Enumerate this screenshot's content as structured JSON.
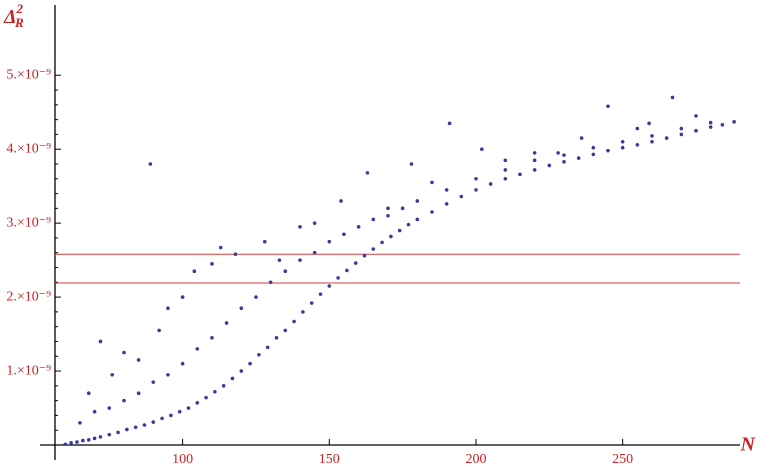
{
  "chart_data": {
    "type": "scatter",
    "xlabel": "N",
    "ylabel": {
      "base": "Δ",
      "sub": "R",
      "sup": "2"
    },
    "color": "#3b3b9c",
    "tick_color": "#cc2020",
    "xlim": [
      56.5,
      290
    ],
    "xticks": [
      100,
      150,
      200,
      250
    ],
    "ylim": [
      0,
      5.95e-09
    ],
    "yticks": [
      {
        "value": 1e-09,
        "label": "1.×10⁻⁹"
      },
      {
        "value": 2e-09,
        "label": "2.×10⁻⁹"
      },
      {
        "value": 3e-09,
        "label": "3.×10⁻⁹"
      },
      {
        "value": 4e-09,
        "label": "4.×10⁻⁹"
      },
      {
        "value": 5e-09,
        "label": "5.×10⁻⁹"
      }
    ],
    "reference_lines": {
      "values": [
        2.58e-09,
        2.19e-09
      ],
      "color": "#d83a3a"
    },
    "x": [
      60,
      62,
      64,
      66,
      68,
      70,
      72,
      75,
      78,
      81,
      84,
      87,
      90,
      93,
      96,
      99,
      102,
      105,
      108,
      111,
      114,
      117,
      120,
      123,
      126,
      129,
      132,
      135,
      138,
      141,
      144,
      147,
      150,
      153,
      156,
      159,
      162,
      165,
      168,
      171,
      174,
      177,
      180,
      185,
      190,
      195,
      200,
      205,
      210,
      215,
      220,
      225,
      230,
      235,
      240,
      245,
      250,
      255,
      260,
      265,
      270,
      275,
      280,
      284,
      288,
      65,
      70,
      75,
      80,
      85,
      90,
      95,
      100,
      105,
      110,
      115,
      120,
      125,
      130,
      135,
      140,
      145,
      150,
      155,
      160,
      165,
      170,
      175,
      180,
      190,
      200,
      210,
      220,
      230,
      240,
      250,
      260,
      270,
      280,
      89,
      191,
      245,
      267,
      178,
      163,
      202,
      210,
      228,
      140,
      145,
      128,
      113,
      118,
      110,
      72,
      80,
      95,
      104,
      133,
      100,
      92,
      85,
      76,
      68,
      154,
      170,
      185,
      220,
      236,
      259,
      275,
      255
    ],
    "y": [
      1e-11,
      3e-11,
      4e-11,
      6e-11,
      7e-11,
      9e-11,
      1.1e-10,
      1.4e-10,
      1.7e-10,
      2.1e-10,
      2.4e-10,
      2.7e-10,
      3.1e-10,
      3.6e-10,
      4e-10,
      4.5e-10,
      5e-10,
      5.7e-10,
      6.4e-10,
      7.2e-10,
      8e-10,
      9e-10,
      1e-09,
      1.1e-09,
      1.22e-09,
      1.32e-09,
      1.45e-09,
      1.55e-09,
      1.67e-09,
      1.8e-09,
      1.92e-09,
      2.04e-09,
      2.15e-09,
      2.26e-09,
      2.36e-09,
      2.46e-09,
      2.56e-09,
      2.65e-09,
      2.74e-09,
      2.82e-09,
      2.9e-09,
      2.98e-09,
      3.05e-09,
      3.15e-09,
      3.26e-09,
      3.36e-09,
      3.45e-09,
      3.53e-09,
      3.6e-09,
      3.66e-09,
      3.72e-09,
      3.78e-09,
      3.83e-09,
      3.88e-09,
      3.93e-09,
      3.98e-09,
      4.02e-09,
      4.06e-09,
      4.1e-09,
      4.15e-09,
      4.2e-09,
      4.25e-09,
      4.3e-09,
      4.33e-09,
      4.37e-09,
      3e-10,
      4.5e-10,
      5e-10,
      6e-10,
      7e-10,
      8.5e-10,
      9.5e-10,
      1.1e-09,
      1.3e-09,
      1.45e-09,
      1.65e-09,
      1.85e-09,
      2e-09,
      2.2e-09,
      2.35e-09,
      2.5e-09,
      2.6e-09,
      2.75e-09,
      2.85e-09,
      2.95e-09,
      3.05e-09,
      3.1e-09,
      3.2e-09,
      3.3e-09,
      3.45e-09,
      3.6e-09,
      3.72e-09,
      3.85e-09,
      3.92e-09,
      4.02e-09,
      4.1e-09,
      4.18e-09,
      4.28e-09,
      4.36e-09,
      3.8e-09,
      4.35e-09,
      4.58e-09,
      4.7e-09,
      3.8e-09,
      3.68e-09,
      4e-09,
      3.85e-09,
      3.95e-09,
      2.95e-09,
      3e-09,
      2.75e-09,
      2.67e-09,
      2.58e-09,
      2.45e-09,
      1.4e-09,
      1.25e-09,
      1.85e-09,
      2.35e-09,
      2.5e-09,
      2e-09,
      1.55e-09,
      1.15e-09,
      9.5e-10,
      7e-10,
      3.3e-09,
      3.2e-09,
      3.55e-09,
      3.95e-09,
      4.15e-09,
      4.35e-09,
      4.45e-09,
      4.28e-09
    ]
  }
}
